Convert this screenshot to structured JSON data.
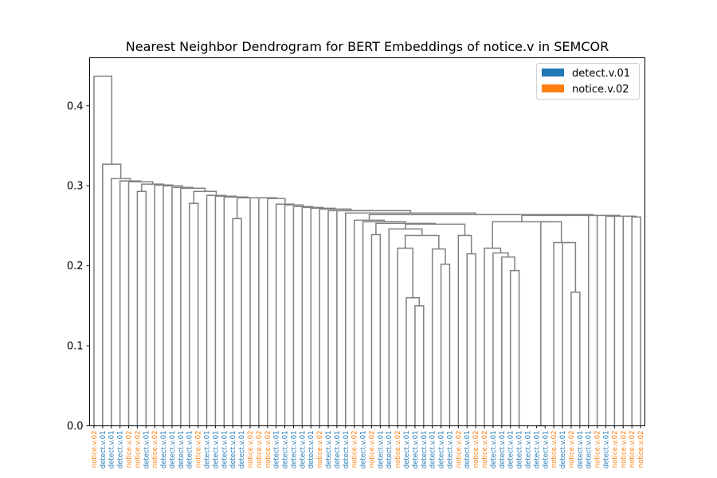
{
  "chart_data": {
    "type": "dendrogram",
    "title": "Nearest Neighbor Dendrogram for BERT Embeddings of notice.v in SEMCOR",
    "xlabel": "",
    "ylabel": "",
    "ylim": [
      0,
      0.46
    ],
    "yticks": [
      "0.0",
      "0.1",
      "0.2",
      "0.3",
      "0.4"
    ],
    "yticks_values": [
      0.0,
      0.1,
      0.2,
      0.3,
      0.4
    ],
    "legend": {
      "placement": "top-right",
      "entries": [
        {
          "label": "detect.v.01",
          "color": "#1f77b4"
        },
        {
          "label": "notice.v.02",
          "color": "#ff7f0e"
        }
      ]
    },
    "link_color": "#808080",
    "leaves": [
      "notice.v.02",
      "detect.v.01",
      "detect.v.01",
      "detect.v.01",
      "notice.v.02",
      "notice.v.02",
      "detect.v.01",
      "notice.v.02",
      "detect.v.01",
      "detect.v.01",
      "detect.v.01",
      "detect.v.01",
      "notice.v.02",
      "detect.v.01",
      "detect.v.01",
      "detect.v.01",
      "detect.v.01",
      "detect.v.01",
      "notice.v.02",
      "notice.v.02",
      "notice.v.02",
      "detect.v.01",
      "detect.v.01",
      "detect.v.01",
      "detect.v.01",
      "detect.v.01",
      "notice.v.02",
      "detect.v.01",
      "detect.v.01",
      "detect.v.01",
      "notice.v.02",
      "detect.v.01",
      "notice.v.02",
      "detect.v.01",
      "detect.v.01",
      "notice.v.02",
      "detect.v.01",
      "detect.v.01",
      "detect.v.01",
      "detect.v.01",
      "detect.v.01",
      "detect.v.01",
      "notice.v.02",
      "detect.v.01",
      "notice.v.02",
      "notice.v.02",
      "detect.v.01",
      "detect.v.01",
      "detect.v.01",
      "detect.v.01",
      "detect.v.01",
      "detect.v.01",
      "detect.v.01",
      "notice.v.02",
      "detect.v.01",
      "notice.v.02",
      "detect.v.01",
      "detect.v.01",
      "notice.v.02",
      "detect.v.01",
      "notice.v.02",
      "notice.v.02",
      "notice.v.02",
      "notice.v.02"
    ],
    "merges": [
      {
        "a": "leaf:0",
        "b": "node:m61",
        "h": 0.437
      },
      {
        "a": "leaf:1",
        "b": "node:m60",
        "h": 0.327
      },
      {
        "a": "leaf:2",
        "b": "node:m59",
        "h": 0.309
      },
      {
        "a": "leaf:3",
        "b": "node:m58",
        "h": 0.306
      },
      {
        "a": "leaf:4",
        "b": "node:m57",
        "h": 0.303
      },
      {
        "a": "leaf:5",
        "b": "leaf:6",
        "h": 0.293
      },
      {
        "a": "node:m05",
        "b": "node:m56",
        "h": 0.302
      },
      {
        "a": "leaf:7",
        "b": "node:m55",
        "h": 0.301
      },
      {
        "a": "leaf:8",
        "b": "node:m54",
        "h": 0.3
      },
      {
        "a": "leaf:9",
        "b": "node:m53",
        "h": 0.298
      },
      {
        "a": "leaf:10",
        "b": "node:m52",
        "h": 0.297
      },
      {
        "a": "leaf:11",
        "b": "leaf:12",
        "h": 0.278
      },
      {
        "a": "node:m11",
        "b": "node:m51",
        "h": 0.293
      },
      {
        "a": "leaf:13",
        "b": "node:m50",
        "h": 0.288
      },
      {
        "a": "leaf:14",
        "b": "node:m49",
        "h": 0.287
      },
      {
        "a": "leaf:15",
        "b": "node:m48",
        "h": 0.286
      },
      {
        "a": "leaf:16",
        "b": "leaf:17",
        "h": 0.259
      },
      {
        "a": "node:m16",
        "b": "node:m47",
        "h": 0.285
      },
      {
        "a": "leaf:18",
        "b": "node:m46",
        "h": 0.285
      },
      {
        "a": "leaf:19",
        "b": "node:m45",
        "h": 0.284
      },
      {
        "a": "leaf:20",
        "b": "node:m44",
        "h": 0.277
      },
      {
        "a": "leaf:21",
        "b": "node:m43",
        "h": 0.276
      },
      {
        "a": "leaf:22",
        "b": "node:m42",
        "h": 0.274
      },
      {
        "a": "leaf:23",
        "b": "node:m41",
        "h": 0.273
      },
      {
        "a": "leaf:24",
        "b": "node:m40",
        "h": 0.272
      },
      {
        "a": "leaf:25",
        "b": "node:m39",
        "h": 0.271
      },
      {
        "a": "leaf:26",
        "b": "node:m38",
        "h": 0.269
      },
      {
        "a": "leaf:27",
        "b": "node:m37",
        "h": 0.269
      },
      {
        "a": "leaf:28",
        "b": "node:m36",
        "h": 0.266
      },
      {
        "a": "leaf:29",
        "b": "node:m35",
        "h": 0.26
      },
      {
        "a": "leaf:30",
        "b": "node:m34",
        "h": 0.259
      },
      {
        "a": "leaf:31",
        "b": "node:m33",
        "h": 0.257
      },
      {
        "a": "leaf:32",
        "b": "leaf:33",
        "h": 0.239
      },
      {
        "a": "node:m32",
        "b": "node:m32b",
        "h": 0.255
      },
      {
        "a": "leaf:34",
        "b": "node:m31",
        "h": 0.254
      },
      {
        "a": "leaf:35",
        "b": "node:m30",
        "h": 0.253
      },
      {
        "a": "leaf:37",
        "b": "leaf:38",
        "h": 0.15
      },
      {
        "a": "leaf:36",
        "b": "node:m36b",
        "h": 0.16
      },
      {
        "a": "leaf:35b",
        "b": "node:m37b",
        "h": 0.222
      },
      {
        "a": "leaf:39",
        "b": "leaf:40",
        "h": 0.202
      },
      {
        "a": "leaf:39b",
        "b": "node:m39b",
        "h": 0.221
      },
      {
        "a": "leaf:38b",
        "b": "node:m40b",
        "h": 0.223
      },
      {
        "a": "node:m38b",
        "b": "node:m41b",
        "h": 0.238
      },
      {
        "a": "leaf:34b",
        "b": "node:m42b",
        "h": 0.246
      },
      {
        "a": "leaf:42",
        "b": "leaf:43",
        "h": 0.215
      },
      {
        "a": "leaf:41",
        "b": "node:m44b",
        "h": 0.238
      },
      {
        "a": "node:m43b",
        "b": "node:m45b",
        "h": 0.252
      },
      {
        "a": "leaf:46",
        "b": "leaf:47",
        "h": 0.194
      },
      {
        "a": "leaf:45",
        "b": "node:m47b",
        "h": 0.211
      },
      {
        "a": "leaf:44",
        "b": "node:m48b",
        "h": 0.216
      },
      {
        "a": "leaf:43b",
        "b": "node:m49b",
        "h": 0.222
      },
      {
        "a": "leaf:50",
        "b": "leaf:51",
        "h": 0.0
      },
      {
        "a": "leaf:53",
        "b": "leaf:54",
        "h": 0.167
      },
      {
        "a": "leaf:52",
        "b": "node:m53b",
        "h": 0.229
      },
      {
        "a": "node:m51b",
        "b": "node:m52b",
        "h": 0.255
      },
      {
        "a": "node:m50b",
        "b": "node:m54b",
        "h": 0.256
      },
      {
        "a": "leaf:56",
        "b": "leaf:57",
        "h": 0.261
      },
      {
        "a": "node:m55b",
        "b": "node:m56b",
        "h": 0.263
      },
      {
        "a": "node:m46b",
        "b": "node:m57b",
        "h": 0.264
      }
    ]
  }
}
